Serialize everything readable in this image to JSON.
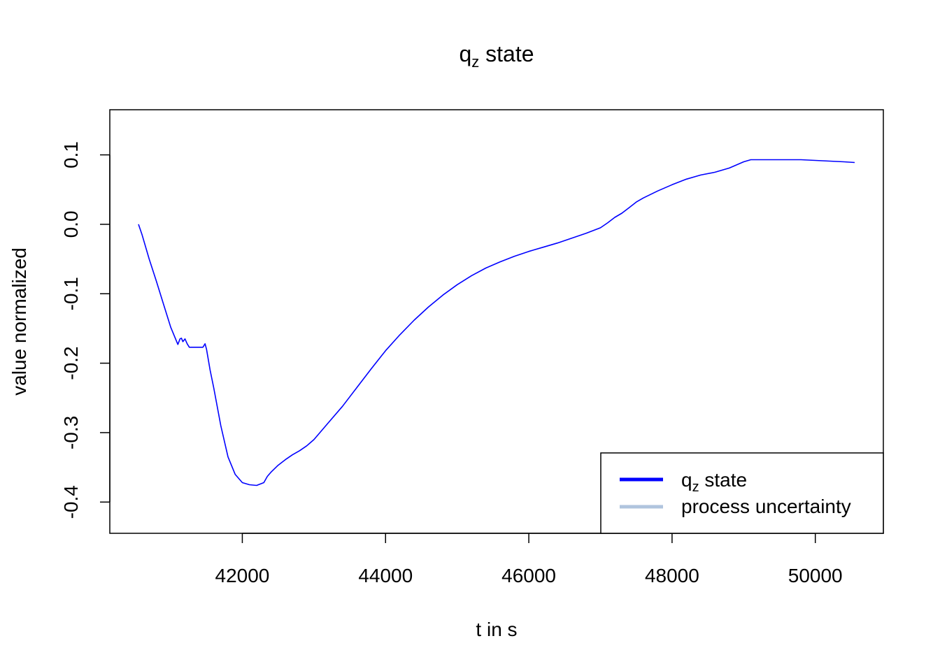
{
  "chart_data": {
    "type": "line",
    "title": {
      "main": "q",
      "sub": "z",
      "rest": " state"
    },
    "xlabel": "t in s",
    "ylabel": "value normalized",
    "xlim": [
      40150,
      50950
    ],
    "ylim": [
      -0.445,
      0.165
    ],
    "x_ticks": [
      42000,
      44000,
      46000,
      48000,
      50000
    ],
    "x_tick_labels": [
      "42000",
      "44000",
      "46000",
      "48000",
      "50000"
    ],
    "y_ticks": [
      -0.4,
      -0.3,
      -0.2,
      -0.1,
      0.0,
      0.1
    ],
    "y_tick_labels": [
      "-0.4",
      "-0.3",
      "-0.2",
      "-0.1",
      "0.0",
      "0.1"
    ],
    "grid": false,
    "legend_position": "bottom-right",
    "series": [
      {
        "name": "qz state",
        "color": "#0000ff",
        "x": [
          40550,
          40600,
          40700,
          40800,
          40900,
          41000,
          41100,
          41130,
          41150,
          41170,
          41200,
          41230,
          41260,
          41300,
          41350,
          41400,
          41450,
          41480,
          41500,
          41550,
          41600,
          41700,
          41800,
          41900,
          42000,
          42100,
          42200,
          42300,
          42350,
          42400,
          42500,
          42600,
          42700,
          42800,
          42900,
          43000,
          43200,
          43400,
          43600,
          43800,
          44000,
          44200,
          44400,
          44600,
          44800,
          45000,
          45200,
          45400,
          45600,
          45800,
          46000,
          46200,
          46400,
          46600,
          46800,
          47000,
          47100,
          47200,
          47300,
          47400,
          47500,
          47600,
          47800,
          48000,
          48200,
          48400,
          48600,
          48800,
          49000,
          49100,
          49200,
          49400,
          49600,
          49800,
          50000,
          50200,
          50400,
          50550
        ],
        "y": [
          0.0,
          -0.015,
          -0.05,
          -0.082,
          -0.115,
          -0.148,
          -0.173,
          -0.165,
          -0.164,
          -0.169,
          -0.165,
          -0.172,
          -0.177,
          -0.177,
          -0.177,
          -0.177,
          -0.177,
          -0.172,
          -0.18,
          -0.21,
          -0.235,
          -0.29,
          -0.335,
          -0.36,
          -0.372,
          -0.375,
          -0.376,
          -0.372,
          -0.363,
          -0.357,
          -0.347,
          -0.339,
          -0.332,
          -0.326,
          -0.319,
          -0.31,
          -0.286,
          -0.262,
          -0.235,
          -0.208,
          -0.182,
          -0.159,
          -0.138,
          -0.119,
          -0.102,
          -0.087,
          -0.074,
          -0.063,
          -0.054,
          -0.046,
          -0.039,
          -0.033,
          -0.027,
          -0.02,
          -0.013,
          -0.005,
          0.002,
          0.01,
          0.016,
          0.024,
          0.032,
          0.038,
          0.048,
          0.057,
          0.065,
          0.071,
          0.075,
          0.081,
          0.09,
          0.093,
          0.093,
          0.093,
          0.093,
          0.093,
          0.092,
          0.091,
          0.09,
          0.089
        ]
      }
    ],
    "legend": [
      {
        "main": "q",
        "sub": "z",
        "rest": " state",
        "color": "#0000ff"
      },
      {
        "main": "process uncertainty",
        "sub": "",
        "rest": "",
        "color": "#b0c4de"
      }
    ]
  }
}
